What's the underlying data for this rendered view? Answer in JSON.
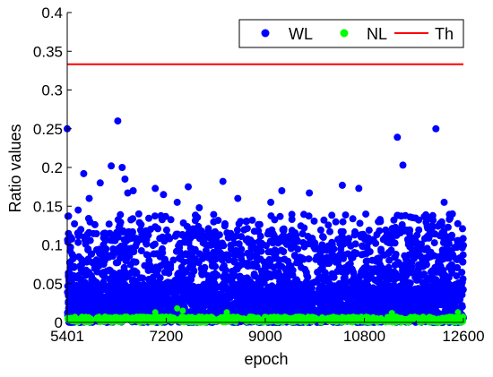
{
  "chart_data": {
    "type": "scatter",
    "xlabel": "epoch",
    "ylabel": "Ratio values",
    "xlim": [
      5401,
      12600
    ],
    "ylim": [
      0,
      0.4
    ],
    "x_ticks": [
      5401,
      7200,
      9000,
      10800,
      12600
    ],
    "x_tick_labels": [
      "5401",
      "7200",
      "9000",
      "10800",
      "12600"
    ],
    "y_ticks": [
      0,
      0.05,
      0.1,
      0.15,
      0.2,
      0.25,
      0.3,
      0.35,
      0.4
    ],
    "y_tick_labels": [
      "0",
      "0.05",
      "0.1",
      "0.15",
      "0.2",
      "0.25",
      "0.3",
      "0.35",
      "0.4"
    ],
    "grid": false,
    "legend_position": "top-right",
    "series": [
      {
        "name": "WL",
        "kind": "scatter",
        "color": "#0000ff",
        "x_range": [
          5401,
          12600
        ],
        "typical_max": 0.12,
        "notable_points": [
          {
            "x": 5401,
            "y": 0.25
          },
          {
            "x": 5600,
            "y": 0.145
          },
          {
            "x": 5700,
            "y": 0.192
          },
          {
            "x": 5800,
            "y": 0.16
          },
          {
            "x": 6000,
            "y": 0.18
          },
          {
            "x": 6200,
            "y": 0.202
          },
          {
            "x": 6320,
            "y": 0.26
          },
          {
            "x": 6400,
            "y": 0.2
          },
          {
            "x": 6450,
            "y": 0.185
          },
          {
            "x": 6500,
            "y": 0.167
          },
          {
            "x": 6600,
            "y": 0.17
          },
          {
            "x": 6700,
            "y": 0.14
          },
          {
            "x": 7000,
            "y": 0.173
          },
          {
            "x": 7150,
            "y": 0.165
          },
          {
            "x": 7400,
            "y": 0.155
          },
          {
            "x": 7600,
            "y": 0.175
          },
          {
            "x": 7800,
            "y": 0.148
          },
          {
            "x": 8230,
            "y": 0.182
          },
          {
            "x": 8500,
            "y": 0.16
          },
          {
            "x": 9100,
            "y": 0.155
          },
          {
            "x": 9300,
            "y": 0.17
          },
          {
            "x": 9800,
            "y": 0.167
          },
          {
            "x": 10400,
            "y": 0.177
          },
          {
            "x": 10700,
            "y": 0.173
          },
          {
            "x": 11400,
            "y": 0.239
          },
          {
            "x": 11500,
            "y": 0.203
          },
          {
            "x": 12100,
            "y": 0.25
          },
          {
            "x": 12250,
            "y": 0.155
          },
          {
            "x": 12400,
            "y": 0.14
          }
        ]
      },
      {
        "name": "NL",
        "kind": "scatter",
        "color": "#00ff00",
        "x_range": [
          5401,
          12600
        ],
        "typical_max": 0.01,
        "notable_points": [
          {
            "x": 7400,
            "y": 0.018
          },
          {
            "x": 7500,
            "y": 0.015
          },
          {
            "x": 7000,
            "y": 0.013
          },
          {
            "x": 8300,
            "y": 0.013
          },
          {
            "x": 11300,
            "y": 0.012
          },
          {
            "x": 12500,
            "y": 0.013
          }
        ]
      },
      {
        "name": "Th",
        "kind": "line",
        "color": "#ff0000",
        "y": 0.3333
      }
    ]
  }
}
